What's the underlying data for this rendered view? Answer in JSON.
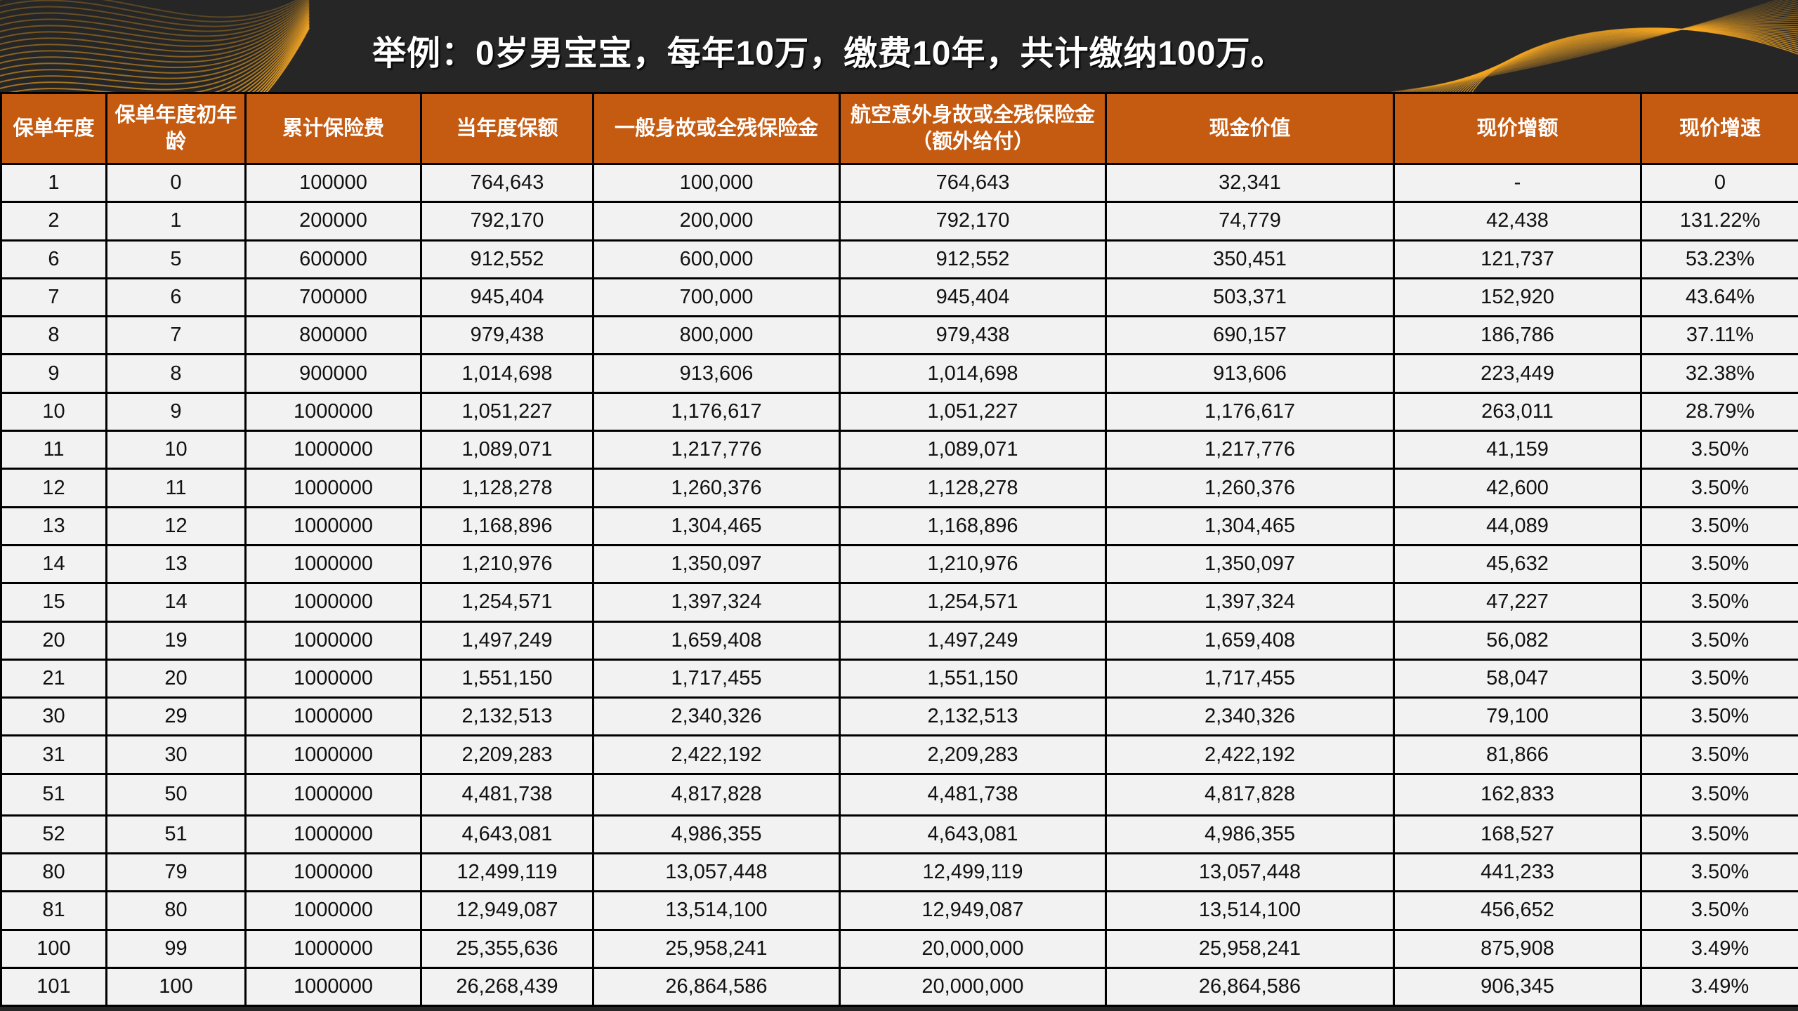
{
  "title": "举例：0岁男宝宝，每年10万，缴费10年，共计缴纳100万。",
  "colors": {
    "header_bg": "#c55a11",
    "banner_bg": "#262626",
    "cell_bg": "#f2f2f2",
    "accent_wave": "#f5a623"
  },
  "table": {
    "headers": [
      "保单年度",
      "保单年度初年龄",
      "累计保险费",
      "当年度保额",
      "一般身故或全残保险金",
      "航空意外身故或全残保险金（额外给付）",
      "现金价值",
      "现价增额",
      "现价增速"
    ],
    "rows": [
      [
        "1",
        "0",
        "100000",
        "764,643",
        "100,000",
        "764,643",
        "32,341",
        "-",
        "0"
      ],
      [
        "2",
        "1",
        "200000",
        "792,170",
        "200,000",
        "792,170",
        "74,779",
        "42,438",
        "131.22%"
      ],
      [
        "6",
        "5",
        "600000",
        "912,552",
        "600,000",
        "912,552",
        "350,451",
        "121,737",
        "53.23%"
      ],
      [
        "7",
        "6",
        "700000",
        "945,404",
        "700,000",
        "945,404",
        "503,371",
        "152,920",
        "43.64%"
      ],
      [
        "8",
        "7",
        "800000",
        "979,438",
        "800,000",
        "979,438",
        "690,157",
        "186,786",
        "37.11%"
      ],
      [
        "9",
        "8",
        "900000",
        "1,014,698",
        "913,606",
        "1,014,698",
        "913,606",
        "223,449",
        "32.38%"
      ],
      [
        "10",
        "9",
        "1000000",
        "1,051,227",
        "1,176,617",
        "1,051,227",
        "1,176,617",
        "263,011",
        "28.79%"
      ],
      [
        "11",
        "10",
        "1000000",
        "1,089,071",
        "1,217,776",
        "1,089,071",
        "1,217,776",
        "41,159",
        "3.50%"
      ],
      [
        "12",
        "11",
        "1000000",
        "1,128,278",
        "1,260,376",
        "1,128,278",
        "1,260,376",
        "42,600",
        "3.50%"
      ],
      [
        "13",
        "12",
        "1000000",
        "1,168,896",
        "1,304,465",
        "1,168,896",
        "1,304,465",
        "44,089",
        "3.50%"
      ],
      [
        "14",
        "13",
        "1000000",
        "1,210,976",
        "1,350,097",
        "1,210,976",
        "1,350,097",
        "45,632",
        "3.50%"
      ],
      [
        "15",
        "14",
        "1000000",
        "1,254,571",
        "1,397,324",
        "1,254,571",
        "1,397,324",
        "47,227",
        "3.50%"
      ],
      [
        "20",
        "19",
        "1000000",
        "1,497,249",
        "1,659,408",
        "1,497,249",
        "1,659,408",
        "56,082",
        "3.50%"
      ],
      [
        "21",
        "20",
        "1000000",
        "1,551,150",
        "1,717,455",
        "1,551,150",
        "1,717,455",
        "58,047",
        "3.50%"
      ],
      [
        "30",
        "29",
        "1000000",
        "2,132,513",
        "2,340,326",
        "2,132,513",
        "2,340,326",
        "79,100",
        "3.50%"
      ],
      [
        "31",
        "30",
        "1000000",
        "2,209,283",
        "2,422,192",
        "2,209,283",
        "2,422,192",
        "81,866",
        "3.50%"
      ],
      [
        "51",
        "50",
        "1000000",
        "4,481,738",
        "4,817,828",
        "4,481,738",
        "4,817,828",
        "162,833",
        "3.50%"
      ],
      [
        "52",
        "51",
        "1000000",
        "4,643,081",
        "4,986,355",
        "4,643,081",
        "4,986,355",
        "168,527",
        "3.50%"
      ],
      [
        "80",
        "79",
        "1000000",
        "12,499,119",
        "13,057,448",
        "12,499,119",
        "13,057,448",
        "441,233",
        "3.50%"
      ],
      [
        "81",
        "80",
        "1000000",
        "12,949,087",
        "13,514,100",
        "12,949,087",
        "13,514,100",
        "456,652",
        "3.50%"
      ],
      [
        "100",
        "99",
        "1000000",
        "25,355,636",
        "25,958,241",
        "20,000,000",
        "25,958,241",
        "875,908",
        "3.49%"
      ],
      [
        "101",
        "100",
        "1000000",
        "26,268,439",
        "26,864,586",
        "20,000,000",
        "26,864,586",
        "906,345",
        "3.49%"
      ]
    ]
  }
}
